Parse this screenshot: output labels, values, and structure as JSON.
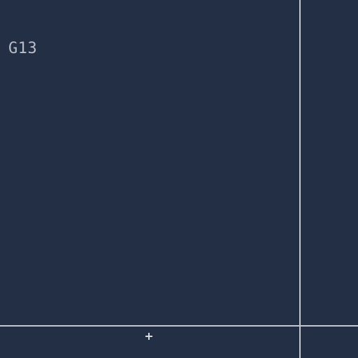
{
  "cell": {
    "label": "G13"
  },
  "controls": {
    "add_icon": "plus-icon"
  },
  "colors": {
    "background": "#222f45",
    "divider": "#c3c6cc",
    "label_text": "#b9bec8"
  }
}
